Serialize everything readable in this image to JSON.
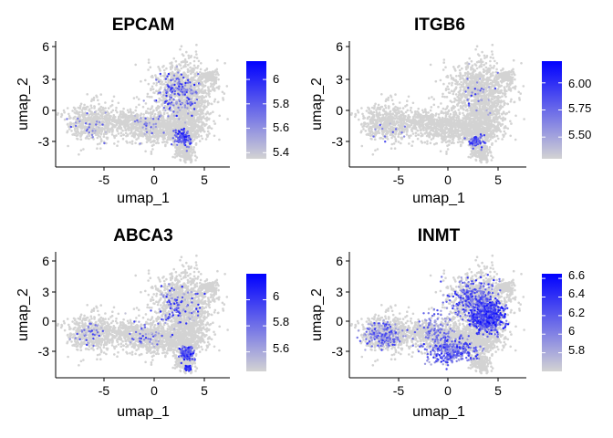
{
  "chart_data": [
    {
      "type": "scatter",
      "title": "EPCAM",
      "xlabel": "umap_1",
      "ylabel": "umap_2",
      "xlim": [
        -9.3,
        7.5
      ],
      "ylim": [
        -5.5,
        6.5
      ],
      "xticks": [
        -5,
        0,
        5
      ],
      "yticks": [
        -3,
        0,
        3,
        6
      ],
      "colorbar": {
        "min": 5.35,
        "max": 6.15,
        "ticks": [
          5.4,
          5.6,
          5.8,
          6.0
        ],
        "low_color": "#d3d3d3",
        "high_color": "#0000ff"
      },
      "expressing_cells": {
        "clusters": [
          {
            "center": [
              3.0,
              -2.8
            ],
            "spread": [
              0.8,
              0.8
            ],
            "count": 90,
            "value_range": [
              5.6,
              6.1
            ]
          },
          {
            "center": [
              2.5,
              1.5
            ],
            "spread": [
              1.7,
              1.8
            ],
            "count": 170,
            "value_range": [
              5.45,
              6.05
            ]
          },
          {
            "center": [
              -0.2,
              -1.5
            ],
            "spread": [
              1.6,
              1.3
            ],
            "count": 40,
            "value_range": [
              5.4,
              5.9
            ]
          },
          {
            "center": [
              -6.0,
              -1.5
            ],
            "spread": [
              1.4,
              1.0
            ],
            "count": 30,
            "value_range": [
              5.4,
              5.9
            ]
          }
        ]
      }
    },
    {
      "type": "scatter",
      "title": "ITGB6",
      "xlabel": "umap_1",
      "ylabel": "umap_2",
      "xlim": [
        -9.3,
        7.5
      ],
      "ylim": [
        -5.5,
        6.5
      ],
      "xticks": [
        -5,
        0,
        5
      ],
      "yticks": [
        -3,
        0,
        3,
        6
      ],
      "colorbar": {
        "min": 5.3,
        "max": 6.2,
        "ticks": [
          5.5,
          5.75,
          6.0
        ],
        "tick_labels": [
          "5.50",
          "5.75",
          "6.00"
        ],
        "low_color": "#d3d3d3",
        "high_color": "#0000ff"
      },
      "expressing_cells": {
        "clusters": [
          {
            "center": [
              2.8,
              -3.0
            ],
            "spread": [
              0.7,
              0.6
            ],
            "count": 55,
            "value_range": [
              5.6,
              6.15
            ]
          },
          {
            "center": [
              3.0,
              1.2
            ],
            "spread": [
              1.6,
              1.8
            ],
            "count": 30,
            "value_range": [
              5.4,
              6.0
            ]
          },
          {
            "center": [
              -5.5,
              -2.2
            ],
            "spread": [
              1.6,
              0.9
            ],
            "count": 12,
            "value_range": [
              5.4,
              5.9
            ]
          }
        ]
      }
    },
    {
      "type": "scatter",
      "title": "ABCA3",
      "xlabel": "umap_1",
      "ylabel": "umap_2",
      "xlim": [
        -9.3,
        7.5
      ],
      "ylim": [
        -5.5,
        6.5
      ],
      "xticks": [
        -5,
        0,
        5
      ],
      "yticks": [
        -3,
        0,
        3,
        6
      ],
      "colorbar": {
        "min": 5.45,
        "max": 6.2,
        "ticks": [
          5.6,
          5.8,
          6.0
        ],
        "low_color": "#d3d3d3",
        "high_color": "#0000ff"
      },
      "expressing_cells": {
        "clusters": [
          {
            "center": [
              3.4,
              -3.2
            ],
            "spread": [
              0.6,
              0.6
            ],
            "count": 110,
            "value_range": [
              5.7,
              6.2
            ]
          },
          {
            "center": [
              3.5,
              -4.6
            ],
            "spread": [
              0.3,
              0.25
            ],
            "count": 25,
            "value_range": [
              5.8,
              6.2
            ]
          },
          {
            "center": [
              2.5,
              1.2
            ],
            "spread": [
              1.8,
              1.8
            ],
            "count": 110,
            "value_range": [
              5.5,
              6.1
            ]
          },
          {
            "center": [
              -0.5,
              -1.5
            ],
            "spread": [
              1.7,
              1.4
            ],
            "count": 45,
            "value_range": [
              5.5,
              6.0
            ]
          },
          {
            "center": [
              -6.0,
              -1.5
            ],
            "spread": [
              1.4,
              1.0
            ],
            "count": 35,
            "value_range": [
              5.5,
              6.0
            ]
          }
        ]
      }
    },
    {
      "type": "scatter",
      "title": "INMT",
      "xlabel": "umap_1",
      "ylabel": "umap_2",
      "xlim": [
        -9.3,
        7.5
      ],
      "ylim": [
        -5.5,
        6.5
      ],
      "xticks": [
        -5,
        0,
        5
      ],
      "yticks": [
        -3,
        0,
        3,
        6
      ],
      "colorbar": {
        "min": 5.6,
        "max": 6.65,
        "ticks": [
          5.8,
          6.0,
          6.2,
          6.4,
          6.6
        ],
        "low_color": "#d3d3d3",
        "high_color": "#0000ff"
      },
      "expressing_cells": {
        "clusters": [
          {
            "center": [
              3.8,
              0.3
            ],
            "spread": [
              1.3,
              1.2
            ],
            "count": 650,
            "value_range": [
              6.0,
              6.65
            ]
          },
          {
            "center": [
              2.5,
              2.0
            ],
            "spread": [
              1.9,
              1.7
            ],
            "count": 280,
            "value_range": [
              5.8,
              6.5
            ]
          },
          {
            "center": [
              0.5,
              -3.0
            ],
            "spread": [
              2.0,
              1.0
            ],
            "count": 300,
            "value_range": [
              5.8,
              6.5
            ]
          },
          {
            "center": [
              -6.0,
              -1.5
            ],
            "spread": [
              1.6,
              1.1
            ],
            "count": 200,
            "value_range": [
              5.7,
              6.4
            ]
          },
          {
            "center": [
              -1.0,
              -1.0
            ],
            "spread": [
              1.5,
              1.5
            ],
            "count": 120,
            "value_range": [
              5.7,
              6.3
            ]
          }
        ]
      }
    }
  ]
}
